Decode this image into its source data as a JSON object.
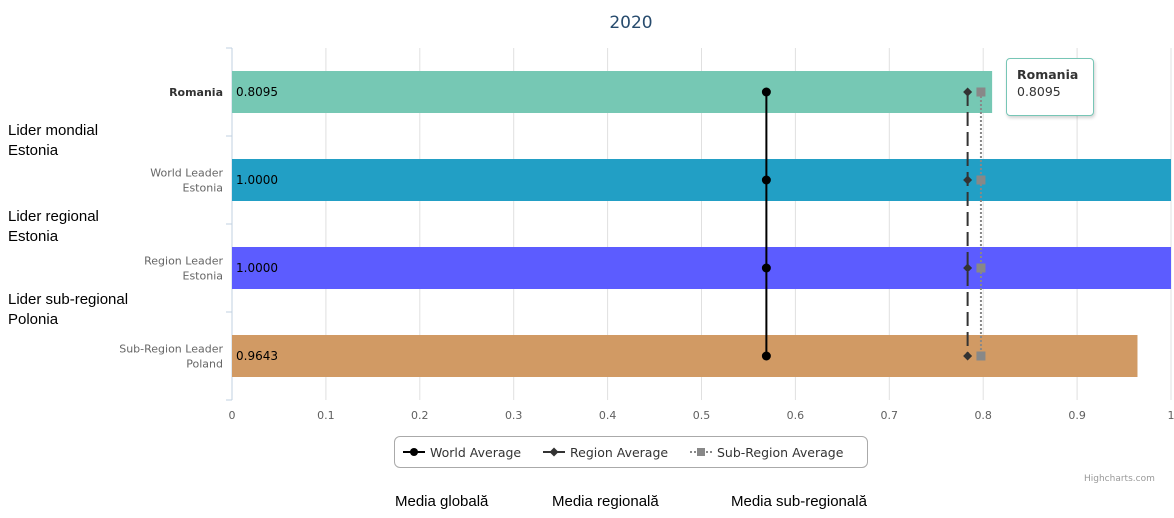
{
  "chart_data": {
    "type": "bar",
    "orientation": "horizontal",
    "title": "2020",
    "categories": [
      "Romania",
      "World Leader\nEstonia",
      "Region Leader\nEstonia",
      "Sub-Region Leader\nPoland"
    ],
    "values": [
      0.8095,
      1.0,
      1.0,
      0.9643
    ],
    "value_labels": [
      "0.8095",
      "1.0000",
      "1.0000",
      "0.9643"
    ],
    "bar_colors": [
      "#76c8b4",
      "#229fc5",
      "#5c5cff",
      "#d19a64"
    ],
    "highlighted_category": "Romania",
    "xlim": [
      0,
      1
    ],
    "x_ticks": [
      0,
      0.1,
      0.2,
      0.3,
      0.4,
      0.5,
      0.6,
      0.7,
      0.8,
      0.9,
      1
    ],
    "x_tick_labels": [
      "0",
      "0.1",
      "0.2",
      "0.3",
      "0.4",
      "0.5",
      "0.6",
      "0.7",
      "0.8",
      "0.9",
      "1"
    ],
    "grid": true,
    "reference_series": [
      {
        "name": "World Average",
        "value": 0.5691,
        "line_style": "solid",
        "marker": "circle",
        "color": "#000000"
      },
      {
        "name": "Region Average",
        "value": 0.7834,
        "line_style": "dashed",
        "marker": "diamond",
        "color": "#333333"
      },
      {
        "name": "Sub-Region Average",
        "value": 0.7976,
        "line_style": "dotted",
        "marker": "square",
        "color": "#888888"
      }
    ],
    "legend_placement": "bottom-center"
  },
  "tooltip": {
    "title": "Romania",
    "value": "0.8095"
  },
  "credits": "Highcharts.com",
  "side_labels": [
    {
      "line1": "Lider mondial",
      "line2": "Estonia"
    },
    {
      "line1": "Lider regional",
      "line2": "Estonia"
    },
    {
      "line1": "Lider sub-regional",
      "line2": "Polonia"
    }
  ],
  "bottom_labels": [
    "Media globală",
    "Media regională",
    "Media sub-regională"
  ]
}
